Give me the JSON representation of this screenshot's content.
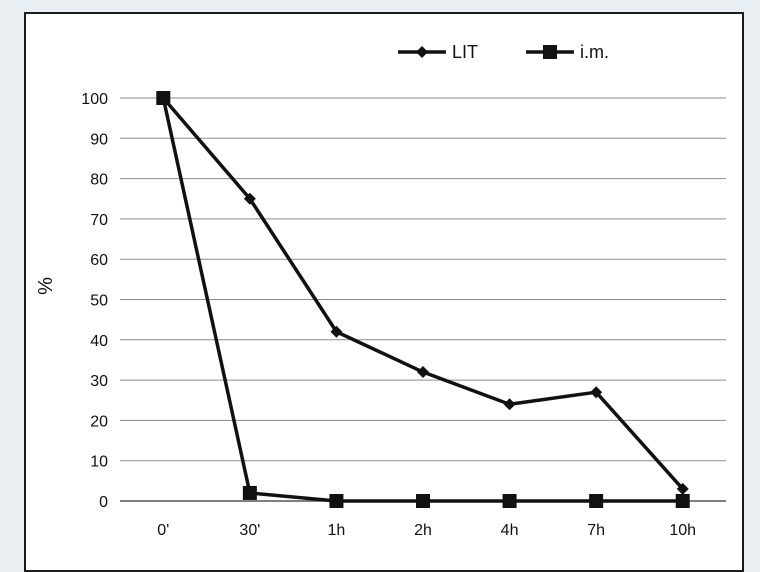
{
  "chart_data": {
    "type": "line",
    "title": "",
    "xlabel": "",
    "ylabel": "%",
    "categories": [
      "0'",
      "30'",
      "1h",
      "2h",
      "4h",
      "7h",
      "10h"
    ],
    "ylim": [
      0,
      100
    ],
    "yticks": [
      0,
      10,
      20,
      30,
      40,
      50,
      60,
      70,
      80,
      90,
      100
    ],
    "grid": true,
    "legend": "top-right",
    "series": [
      {
        "name": "LIT",
        "marker": "diamond",
        "color": "#111111",
        "values": [
          100,
          75,
          42,
          32,
          24,
          27,
          3
        ]
      },
      {
        "name": "i.m.",
        "marker": "square",
        "color": "#111111",
        "values": [
          100,
          2,
          0,
          0,
          0,
          0,
          0
        ]
      }
    ]
  }
}
